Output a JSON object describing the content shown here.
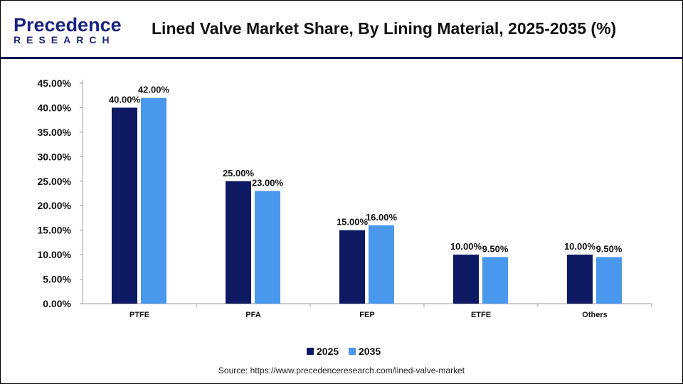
{
  "header": {
    "logo_line1": "Precedence",
    "logo_line2": "RESEARCH",
    "title": "Lined Valve Market Share, By Lining Material, 2025-2035 (%)"
  },
  "source": "Source: https://www.precedenceresearch.com/lined-valve-market",
  "chart_data": {
    "type": "bar",
    "title": "Lined Valve Market Share, By Lining Material, 2025-2035 (%)",
    "categories": [
      "PTFE",
      "PFA",
      "FEP",
      "ETFE",
      "Others"
    ],
    "series": [
      {
        "name": "2025",
        "color": "#0d1a63",
        "values": [
          40,
          25,
          15,
          10,
          10
        ],
        "labels": [
          "40.00%",
          "25.00%",
          "15.00%",
          "10.00%",
          "10.00%"
        ]
      },
      {
        "name": "2035",
        "color": "#4a98ee",
        "values": [
          42,
          23,
          16,
          9.5,
          9.5
        ],
        "labels": [
          "42.00%",
          "23.00%",
          "16.00%",
          "9.50%",
          "9.50%"
        ]
      }
    ],
    "ylim": [
      0,
      45
    ],
    "yticks": [
      "0.00%",
      "5.00%",
      "10.00%",
      "15.00%",
      "20.00%",
      "25.00%",
      "30.00%",
      "35.00%",
      "40.00%",
      "45.00%"
    ],
    "grid": false,
    "legend": "bottom"
  }
}
